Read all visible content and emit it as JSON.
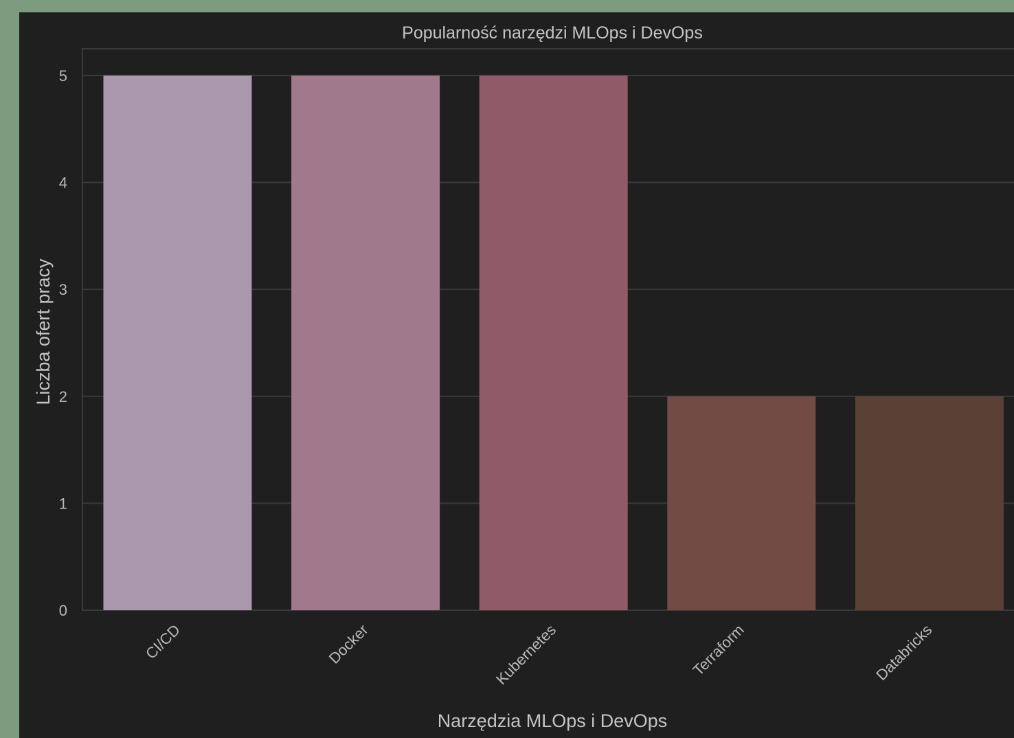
{
  "chart_data": {
    "type": "bar",
    "title": "Popularność narzędzi MLOps i DevOps",
    "xlabel": "Narzędzia MLOps i DevOps",
    "ylabel": "Liczba ofert pracy",
    "categories": [
      "CI/CD",
      "Docker",
      "Kubernetes",
      "Terraform",
      "Databricks"
    ],
    "values": [
      5,
      5,
      5,
      2,
      2
    ],
    "colors": [
      "#aa97ab",
      "#a1798c",
      "#915a68",
      "#724b45",
      "#5b4035"
    ],
    "ylim": [
      0,
      5.25
    ],
    "yticks": [
      0,
      1,
      2,
      3,
      4,
      5
    ],
    "grid": true,
    "background": "#1f1f1f"
  }
}
